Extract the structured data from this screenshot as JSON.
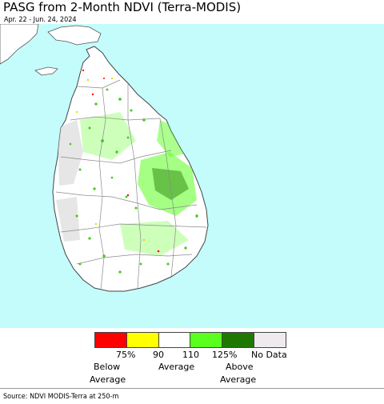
{
  "title": "PASG from 2-Month NDVI (Terra-MODIS)",
  "subtitle": "Apr. 22 - Jun. 24, 2024",
  "legend": {
    "colors": [
      "#ff0000",
      "#ffff00",
      "#ffffff",
      "#5aff1e",
      "#1e7800",
      "#eeeaee"
    ],
    "ticks": [
      "75%",
      "90",
      "110",
      "125%",
      "No Data"
    ],
    "below_line1": "Below",
    "below_line2": "Average",
    "average": "Average",
    "above_line1": "Above",
    "above_line2": "Average"
  },
  "source": "Source: NDVI MODIS-Terra at 250-m",
  "colors": {
    "water": "#c4fcfc",
    "land": "#ffffff",
    "no_data": "#dcdcdc",
    "boundary": "#8a8a8a"
  }
}
